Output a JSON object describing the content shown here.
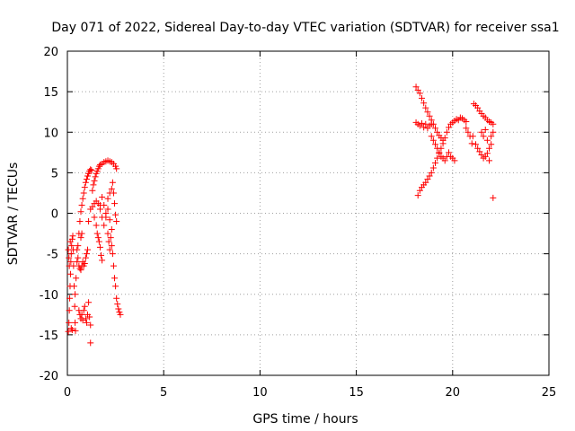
{
  "chart_data": {
    "type": "scatter",
    "title": "Day 071 of 2022, Sidereal Day-to-day VTEC variation (SDTVAR) for receiver ssa1",
    "xlabel": "GPS time / hours",
    "ylabel": "SDTVAR / TECUs",
    "xlim": [
      0,
      25
    ],
    "ylim": [
      -20,
      20
    ],
    "xticks": [
      0,
      5,
      10,
      15,
      20,
      25
    ],
    "yticks": [
      -20,
      -15,
      -10,
      -5,
      0,
      5,
      10,
      15,
      20
    ],
    "grid": true,
    "marker": "+",
    "color": "#ff0000",
    "series": [
      {
        "name": "ssa1",
        "points": [
          [
            0.05,
            -14.6
          ],
          [
            0.08,
            -13.5
          ],
          [
            0.1,
            -12
          ],
          [
            0.12,
            -10.5
          ],
          [
            0.14,
            -9
          ],
          [
            0.16,
            -7.5
          ],
          [
            0.18,
            -6
          ],
          [
            0.2,
            -5
          ],
          [
            0.22,
            -4
          ],
          [
            0.25,
            -3.2
          ],
          [
            0.28,
            -2.8
          ],
          [
            0.3,
            -4.5
          ],
          [
            0.32,
            -6.5
          ],
          [
            0.35,
            -9
          ],
          [
            0.38,
            -11.5
          ],
          [
            0.4,
            -13.5
          ],
          [
            0.42,
            -14.5
          ],
          [
            0.05,
            -4.5
          ],
          [
            0.08,
            -5.5
          ],
          [
            0.1,
            -6.5
          ],
          [
            0.15,
            -3.5
          ],
          [
            0.2,
            -14.2
          ],
          [
            0.25,
            -14.4
          ],
          [
            0.4,
            -10
          ],
          [
            0.45,
            -8
          ],
          [
            0.5,
            -6
          ],
          [
            0.55,
            -4
          ],
          [
            0.6,
            -2.5
          ],
          [
            0.65,
            -1
          ],
          [
            0.7,
            0.2
          ],
          [
            0.75,
            1
          ],
          [
            0.8,
            1.8
          ],
          [
            0.85,
            2.5
          ],
          [
            0.9,
            3.2
          ],
          [
            0.95,
            3.8
          ],
          [
            1.0,
            4.2
          ],
          [
            1.05,
            4.6
          ],
          [
            1.1,
            4.9
          ],
          [
            1.15,
            5.2
          ],
          [
            1.2,
            5.4
          ],
          [
            1.25,
            5.3
          ],
          [
            0.5,
            -4.5
          ],
          [
            0.55,
            -5.5
          ],
          [
            0.6,
            -6.5
          ],
          [
            0.65,
            -6.8
          ],
          [
            0.7,
            -7
          ],
          [
            0.75,
            -6.5
          ],
          [
            0.8,
            -6
          ],
          [
            0.85,
            -6.5
          ],
          [
            0.9,
            -6.2
          ],
          [
            0.95,
            -5.5
          ],
          [
            1.0,
            -5
          ],
          [
            1.05,
            -4.5
          ],
          [
            0.6,
            -12
          ],
          [
            0.65,
            -12.5
          ],
          [
            0.7,
            -13
          ],
          [
            0.75,
            -12.5
          ],
          [
            0.8,
            -13.2
          ],
          [
            0.85,
            -12
          ],
          [
            0.9,
            -11.5
          ],
          [
            0.95,
            -13
          ],
          [
            1.0,
            -13.5
          ],
          [
            1.05,
            -12.5
          ],
          [
            1.1,
            -11
          ],
          [
            1.15,
            -12.8
          ],
          [
            1.2,
            -13.8
          ],
          [
            1.2,
            -16
          ],
          [
            0.7,
            -3
          ],
          [
            0.75,
            -2.5
          ],
          [
            1.1,
            -1
          ],
          [
            1.2,
            0.5
          ],
          [
            1.3,
            0.8
          ],
          [
            1.4,
            1.2
          ],
          [
            1.5,
            1.5
          ],
          [
            1.6,
            1.2
          ],
          [
            1.7,
            0.5
          ],
          [
            1.8,
            -0.5
          ],
          [
            1.9,
            -1.5
          ],
          [
            2.0,
            -0.5
          ],
          [
            2.1,
            0.5
          ],
          [
            2.2,
            -0.8
          ],
          [
            2.3,
            -2
          ],
          [
            1.3,
            2.8
          ],
          [
            1.35,
            3.5
          ],
          [
            1.4,
            4
          ],
          [
            1.45,
            4.5
          ],
          [
            1.5,
            4.9
          ],
          [
            1.55,
            5.2
          ],
          [
            1.6,
            5.5
          ],
          [
            1.65,
            5.8
          ],
          [
            1.7,
            6
          ],
          [
            1.8,
            6.1
          ],
          [
            1.9,
            6.3
          ],
          [
            2.0,
            6.4
          ],
          [
            2.1,
            6.5
          ],
          [
            2.2,
            6.4
          ],
          [
            2.3,
            6.3
          ],
          [
            2.4,
            6.1
          ],
          [
            2.5,
            5.8
          ],
          [
            2.55,
            5.5
          ],
          [
            1.4,
            -0.5
          ],
          [
            1.5,
            -1.5
          ],
          [
            1.6,
            -3
          ],
          [
            1.7,
            -4.2
          ],
          [
            1.75,
            -5.2
          ],
          [
            1.8,
            -5.8
          ],
          [
            1.55,
            -2.5
          ],
          [
            1.65,
            -3.5
          ],
          [
            1.7,
            1
          ],
          [
            1.8,
            2
          ],
          [
            1.9,
            1
          ],
          [
            2.0,
            0
          ],
          [
            2.1,
            1.8
          ],
          [
            2.2,
            2.5
          ],
          [
            2.3,
            3
          ],
          [
            2.35,
            3.8
          ],
          [
            2.4,
            2.5
          ],
          [
            2.45,
            1.2
          ],
          [
            2.5,
            -0.2
          ],
          [
            2.55,
            -1
          ],
          [
            2.1,
            -2.5
          ],
          [
            2.15,
            -3.5
          ],
          [
            2.2,
            -4.5
          ],
          [
            2.25,
            -3
          ],
          [
            2.3,
            -4
          ],
          [
            2.35,
            -5
          ],
          [
            2.4,
            -6.5
          ],
          [
            2.45,
            -8
          ],
          [
            2.5,
            -9
          ],
          [
            2.55,
            -10.5
          ],
          [
            2.6,
            -11.2
          ],
          [
            2.65,
            -11.8
          ],
          [
            2.7,
            -12.2
          ],
          [
            2.75,
            -12.5
          ],
          [
            18.1,
            15.6
          ],
          [
            18.2,
            15.2
          ],
          [
            18.3,
            14.8
          ],
          [
            18.4,
            14.2
          ],
          [
            18.5,
            13.6
          ],
          [
            18.6,
            13
          ],
          [
            18.7,
            12.5
          ],
          [
            18.8,
            12
          ],
          [
            18.9,
            11.5
          ],
          [
            19.0,
            11
          ],
          [
            19.1,
            10.5
          ],
          [
            19.2,
            10
          ],
          [
            19.3,
            9.6
          ],
          [
            19.4,
            9.3
          ],
          [
            19.5,
            9
          ],
          [
            18.1,
            11.2
          ],
          [
            18.2,
            11
          ],
          [
            18.3,
            10.8
          ],
          [
            18.4,
            11.1
          ],
          [
            18.5,
            10.6
          ],
          [
            18.6,
            11
          ],
          [
            18.7,
            10.5
          ],
          [
            18.8,
            10.8
          ],
          [
            18.9,
            11
          ],
          [
            18.2,
            2.2
          ],
          [
            18.3,
            2.8
          ],
          [
            18.4,
            3.2
          ],
          [
            18.5,
            3.5
          ],
          [
            18.6,
            3.8
          ],
          [
            18.7,
            4.2
          ],
          [
            18.8,
            4.6
          ],
          [
            18.9,
            5
          ],
          [
            19.0,
            5.6
          ],
          [
            19.1,
            6.2
          ],
          [
            19.2,
            6.8
          ],
          [
            19.3,
            7.4
          ],
          [
            19.4,
            8
          ],
          [
            19.5,
            8.6
          ],
          [
            19.6,
            9.3
          ],
          [
            19.7,
            10
          ],
          [
            19.8,
            10.6
          ],
          [
            19.9,
            11
          ],
          [
            20.0,
            11.2
          ],
          [
            20.1,
            11.4
          ],
          [
            20.2,
            11.6
          ],
          [
            20.3,
            11.5
          ],
          [
            20.4,
            11.8
          ],
          [
            20.5,
            11.7
          ],
          [
            20.6,
            11.5
          ],
          [
            20.7,
            11.3
          ],
          [
            18.9,
            9.5
          ],
          [
            19.0,
            9
          ],
          [
            19.1,
            8.5
          ],
          [
            19.2,
            8
          ],
          [
            19.3,
            7.5
          ],
          [
            19.4,
            7
          ],
          [
            19.5,
            6.8
          ],
          [
            19.6,
            6.5
          ],
          [
            19.7,
            7
          ],
          [
            19.8,
            7.5
          ],
          [
            19.9,
            7
          ],
          [
            20.0,
            6.8
          ],
          [
            20.1,
            6.5
          ],
          [
            20.7,
            10.5
          ],
          [
            20.8,
            10
          ],
          [
            20.9,
            9.5
          ],
          [
            21.0,
            8.6
          ],
          [
            21.05,
            9.5
          ],
          [
            21.1,
            13.5
          ],
          [
            21.2,
            13.3
          ],
          [
            21.3,
            13
          ],
          [
            21.4,
            12.6
          ],
          [
            21.5,
            12.3
          ],
          [
            21.6,
            12
          ],
          [
            21.7,
            11.8
          ],
          [
            21.8,
            11.5
          ],
          [
            21.9,
            11.3
          ],
          [
            22.0,
            11.2
          ],
          [
            22.1,
            11
          ],
          [
            21.2,
            8.5
          ],
          [
            21.3,
            8
          ],
          [
            21.4,
            7.6
          ],
          [
            21.5,
            7.2
          ],
          [
            21.6,
            6.8
          ],
          [
            21.7,
            7
          ],
          [
            21.8,
            7.4
          ],
          [
            21.9,
            8
          ],
          [
            22.0,
            8.5
          ],
          [
            21.5,
            10
          ],
          [
            21.6,
            9.5
          ],
          [
            21.7,
            10.3
          ],
          [
            21.8,
            9
          ],
          [
            22.0,
            9.5
          ],
          [
            22.1,
            10
          ],
          [
            21.9,
            6.5
          ],
          [
            22.1,
            1.9
          ]
        ]
      }
    ]
  }
}
